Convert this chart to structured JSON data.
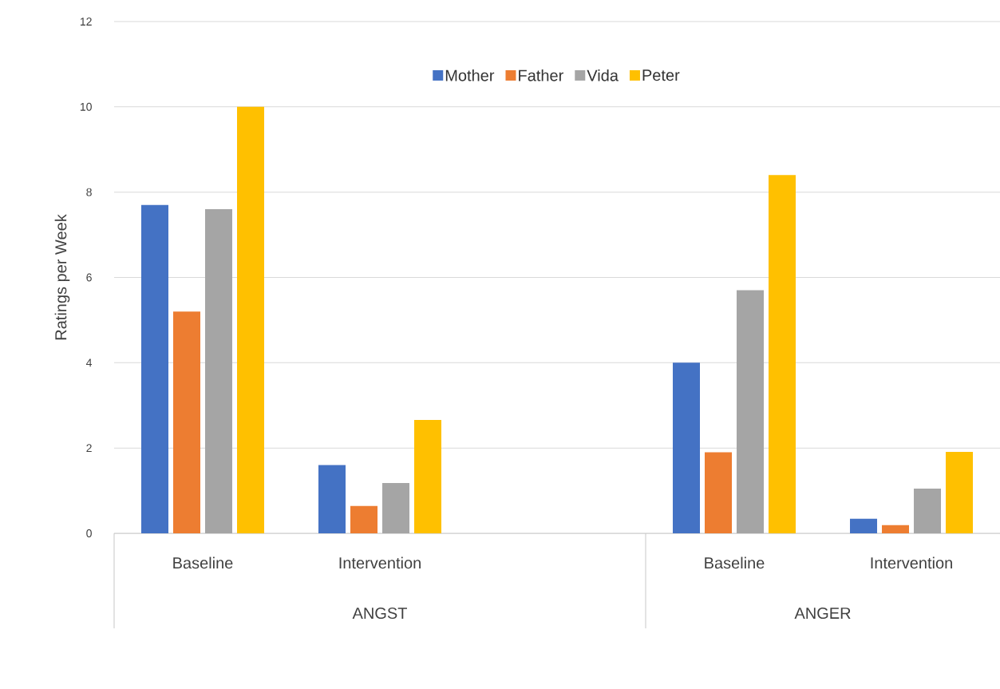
{
  "chart_data": {
    "type": "bar",
    "ylabel": "Ratings per Week",
    "categories": [
      "Baseline",
      "Intervention",
      null,
      "Baseline",
      "Intervention"
    ],
    "series": [
      {
        "name": "Mother",
        "color": "#4472c4",
        "values": [
          7.7,
          1.6,
          null,
          4.0,
          0.34
        ]
      },
      {
        "name": "Father",
        "color": "#ed7d31",
        "values": [
          5.2,
          0.64,
          null,
          1.9,
          0.19
        ]
      },
      {
        "name": "Vida",
        "color": "#a5a5a5",
        "values": [
          7.6,
          1.18,
          null,
          5.7,
          1.05
        ]
      },
      {
        "name": "Peter",
        "color": "#ffc000",
        "values": [
          10.0,
          2.66,
          null,
          8.4,
          1.91
        ]
      }
    ],
    "ylim": [
      0,
      12
    ],
    "yticks": [
      0,
      2,
      4,
      6,
      8,
      10,
      12
    ],
    "grid": "y",
    "legend": "top",
    "annotations": [
      "ANGST",
      "ANGER"
    ]
  }
}
